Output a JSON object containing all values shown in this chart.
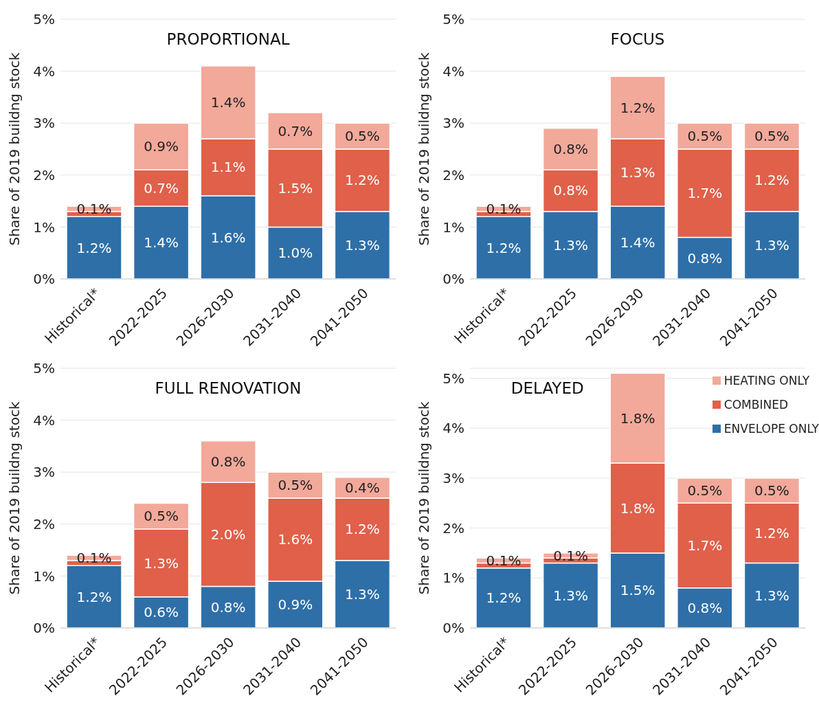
{
  "chart_data": [
    {
      "type": "bar",
      "stacked": true,
      "title": "PROPORTIONAL",
      "ylabel": "Share of 2019 buildng stock",
      "categories": [
        "Historical*",
        "2022-2025",
        "2026-2030",
        "2031-2040",
        "2041-2050"
      ],
      "ylim": [
        0,
        5
      ],
      "yticks": [
        {
          "value": 0,
          "label": "0%"
        },
        {
          "value": 1,
          "label": "1%"
        },
        {
          "value": 2,
          "label": "2%"
        },
        {
          "value": 3,
          "label": "3%"
        },
        {
          "value": 4,
          "label": "4%"
        },
        {
          "value": 5,
          "label": "5%"
        }
      ],
      "grid": "y",
      "legend": false,
      "series": [
        {
          "color": "#2e6fa8",
          "values": [
            1.2,
            1.4,
            1.6,
            1.0,
            1.3
          ],
          "value_labels": [
            "1.2%",
            "1.4%",
            "1.6%",
            "1.0%",
            "1.3%"
          ]
        },
        {
          "color": "#e0604a",
          "values": [
            0.1,
            0.7,
            1.1,
            1.5,
            1.2
          ],
          "value_labels": [
            null,
            "0.7%",
            "1.1%",
            "1.5%",
            "1.2%"
          ]
        },
        {
          "color": "#f2a99a",
          "values": [
            0.1,
            0.9,
            1.4,
            0.7,
            0.5
          ],
          "value_labels": [
            "0.1%",
            "0.9%",
            "1.4%",
            "0.7%",
            "0.5%"
          ]
        }
      ]
    },
    {
      "type": "bar",
      "stacked": true,
      "title": "FOCUS",
      "ylabel": "Share of 2019 buildng stock",
      "categories": [
        "Historical*",
        "2022-2025",
        "2026-2030",
        "2031-2040",
        "2041-2050"
      ],
      "ylim": [
        0,
        5
      ],
      "yticks": [
        {
          "value": 0,
          "label": "0%"
        },
        {
          "value": 1,
          "label": "1%"
        },
        {
          "value": 2,
          "label": "2%"
        },
        {
          "value": 3,
          "label": "3%"
        },
        {
          "value": 4,
          "label": "4%"
        },
        {
          "value": 5,
          "label": "5%"
        }
      ],
      "grid": "y",
      "legend": false,
      "series": [
        {
          "color": "#2e6fa8",
          "values": [
            1.2,
            1.3,
            1.4,
            0.8,
            1.3
          ],
          "value_labels": [
            "1.2%",
            "1.3%",
            "1.4%",
            "0.8%",
            "1.3%"
          ]
        },
        {
          "color": "#e0604a",
          "values": [
            0.1,
            0.8,
            1.3,
            1.7,
            1.2
          ],
          "value_labels": [
            null,
            "0.8%",
            "1.3%",
            "1.7%",
            "1.2%"
          ]
        },
        {
          "color": "#f2a99a",
          "values": [
            0.1,
            0.8,
            1.2,
            0.5,
            0.5
          ],
          "value_labels": [
            "0.1%",
            "0.8%",
            "1.2%",
            "0.5%",
            "0.5%"
          ]
        }
      ]
    },
    {
      "type": "bar",
      "stacked": true,
      "title": "FULL RENOVATION",
      "ylabel": "Share of 2019 buildng stock",
      "categories": [
        "Historical*",
        "2022-2025",
        "2026-2030",
        "2031-2040",
        "2041-2050"
      ],
      "ylim": [
        0,
        5
      ],
      "yticks": [
        {
          "value": 0,
          "label": "0%"
        },
        {
          "value": 1,
          "label": "1%"
        },
        {
          "value": 2,
          "label": "2%"
        },
        {
          "value": 3,
          "label": "3%"
        },
        {
          "value": 4,
          "label": "4%"
        },
        {
          "value": 5,
          "label": "5%"
        }
      ],
      "grid": "y",
      "legend": false,
      "series": [
        {
          "color": "#2e6fa8",
          "values": [
            1.2,
            0.6,
            0.8,
            0.9,
            1.3
          ],
          "value_labels": [
            "1.2%",
            "0.6%",
            "0.8%",
            "0.9%",
            "1.3%"
          ]
        },
        {
          "color": "#e0604a",
          "values": [
            0.1,
            1.3,
            2.0,
            1.6,
            1.2
          ],
          "value_labels": [
            null,
            "1.3%",
            "2.0%",
            "1.6%",
            "1.2%"
          ]
        },
        {
          "color": "#f2a99a",
          "values": [
            0.1,
            0.5,
            0.8,
            0.5,
            0.4
          ],
          "value_labels": [
            "0.1%",
            "0.5%",
            "0.8%",
            "0.5%",
            "0.4%"
          ]
        }
      ]
    },
    {
      "type": "bar",
      "stacked": true,
      "title": "DELAYED",
      "ylabel": "Share of 2019 buildng stock",
      "categories": [
        "Historical*",
        "2022-2025",
        "2026-2030",
        "2031-2040",
        "2041-2050"
      ],
      "ylim": [
        0,
        5.2
      ],
      "yticks": [
        {
          "value": 0,
          "label": "0%"
        },
        {
          "value": 1,
          "label": "1%"
        },
        {
          "value": 2,
          "label": "2%"
        },
        {
          "value": 3,
          "label": "3%"
        },
        {
          "value": 4,
          "label": "4%"
        },
        {
          "value": 5,
          "label": "5%"
        }
      ],
      "grid": "y",
      "legend": "top right",
      "series": [
        {
          "name": "ENVELOPE ONLY",
          "color": "#2e6fa8",
          "values": [
            1.2,
            1.3,
            1.5,
            0.8,
            1.3
          ],
          "value_labels": [
            "1.2%",
            "1.3%",
            "1.5%",
            "0.8%",
            "1.3%"
          ]
        },
        {
          "name": "COMBINED",
          "color": "#e0604a",
          "values": [
            0.1,
            0.1,
            1.8,
            1.7,
            1.2
          ],
          "value_labels": [
            null,
            null,
            "1.8%",
            "1.7%",
            "1.2%"
          ]
        },
        {
          "name": "HEATING ONLY",
          "color": "#f2a99a",
          "values": [
            0.1,
            0.1,
            1.8,
            0.5,
            0.5
          ],
          "value_labels": [
            "0.1%",
            "0.1%",
            "1.8%",
            "0.5%",
            "0.5%"
          ]
        }
      ]
    }
  ]
}
